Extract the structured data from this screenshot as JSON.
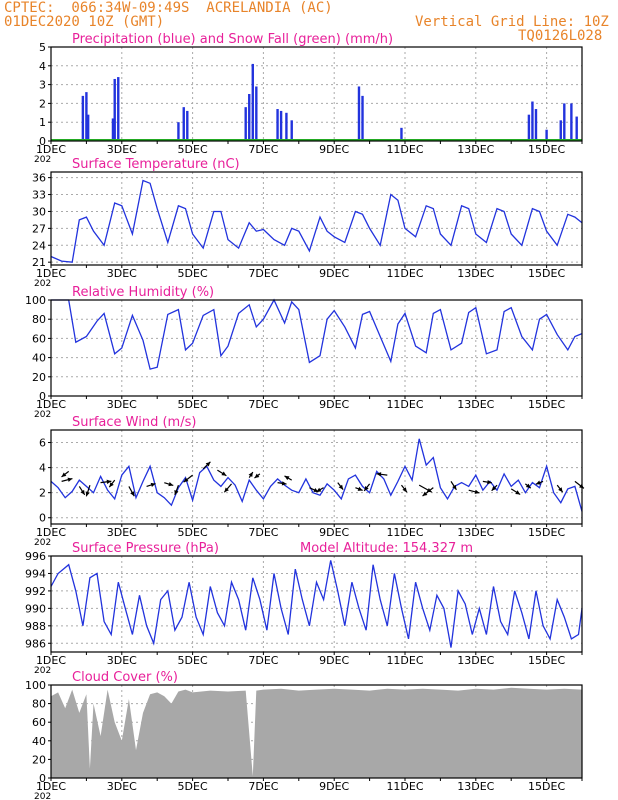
{
  "header": {
    "line1": "CPTEC:  066:34W-09:49S  ACRELANDIA (AC)",
    "line2": "01DEC2020 10Z (GMT)",
    "grid_note": "Vertical Grid Line: 10Z",
    "code": "TQ0126L028"
  },
  "colors": {
    "header": "#e8842a",
    "title": "#e8209a",
    "line": "#2233dd",
    "snow": "#22aa22",
    "cloud": "#a8a8a8",
    "grid": "#aaaaaa"
  },
  "x_axis": {
    "tick_labels": [
      "1DEC",
      "3DEC",
      "5DEC",
      "7DEC",
      "9DEC",
      "11DEC",
      "13DEC",
      "15DEC"
    ],
    "truncated_label": "202"
  },
  "chart_data": [
    {
      "id": "precip",
      "type": "bar",
      "title": "Precipitation (blue) and Snow Fall (green) (mm/h)",
      "ylim": [
        0,
        5
      ],
      "yticks": [
        0,
        1,
        2,
        3,
        4,
        5
      ],
      "grid": true,
      "series": [
        {
          "name": "Precipitation",
          "color": "#2233dd",
          "points": [
            [
              1.9,
              2.4
            ],
            [
              2.0,
              2.6
            ],
            [
              2.05,
              1.4
            ],
            [
              2.8,
              3.3
            ],
            [
              2.9,
              3.4
            ],
            [
              2.75,
              1.2
            ],
            [
              4.6,
              1.0
            ],
            [
              4.75,
              1.8
            ],
            [
              4.85,
              1.6
            ],
            [
              6.5,
              1.8
            ],
            [
              6.6,
              2.5
            ],
            [
              6.7,
              4.1
            ],
            [
              6.8,
              2.9
            ],
            [
              7.4,
              1.7
            ],
            [
              7.5,
              1.6
            ],
            [
              7.65,
              1.5
            ],
            [
              7.8,
              1.1
            ],
            [
              9.7,
              2.9
            ],
            [
              9.8,
              2.4
            ],
            [
              10.9,
              0.7
            ],
            [
              14.5,
              1.4
            ],
            [
              14.6,
              2.1
            ],
            [
              14.7,
              1.7
            ],
            [
              15.0,
              0.6
            ],
            [
              15.4,
              1.1
            ],
            [
              15.5,
              2.0
            ],
            [
              15.7,
              2.0
            ],
            [
              15.85,
              1.3
            ]
          ]
        },
        {
          "name": "Snow Fall",
          "color": "#22aa22",
          "points": [
            [
              1.0,
              0.1
            ],
            [
              15.9,
              0.1
            ]
          ]
        }
      ]
    },
    {
      "id": "temp",
      "type": "line",
      "title": "Surface Temperature (nC)",
      "ylim": [
        20.5,
        37
      ],
      "yticks": [
        21,
        24,
        27,
        30,
        33,
        36
      ],
      "grid": true,
      "x": [
        1.0,
        1.3,
        1.6,
        1.8,
        2.0,
        2.2,
        2.5,
        2.8,
        3.0,
        3.3,
        3.6,
        3.8,
        4.0,
        4.3,
        4.6,
        4.8,
        5.0,
        5.3,
        5.6,
        5.8,
        6.0,
        6.3,
        6.6,
        6.8,
        7.0,
        7.3,
        7.6,
        7.8,
        8.0,
        8.3,
        8.6,
        8.8,
        9.0,
        9.3,
        9.6,
        9.8,
        10.0,
        10.3,
        10.6,
        10.8,
        11.0,
        11.3,
        11.6,
        11.8,
        12.0,
        12.3,
        12.6,
        12.8,
        13.0,
        13.3,
        13.6,
        13.8,
        14.0,
        14.3,
        14.6,
        14.8,
        15.0,
        15.3,
        15.6,
        15.8,
        16.0
      ],
      "y": [
        22.0,
        21.2,
        21.0,
        28.5,
        29.0,
        26.5,
        24.0,
        31.5,
        31.0,
        26.0,
        35.5,
        35.0,
        30.5,
        24.5,
        31.0,
        30.5,
        26.0,
        23.5,
        30.0,
        30.0,
        25.0,
        23.5,
        28.0,
        26.5,
        26.8,
        25.0,
        24.0,
        27.0,
        26.5,
        23.0,
        29.0,
        26.5,
        25.5,
        24.5,
        30.0,
        29.5,
        27.0,
        24.0,
        33.0,
        32.0,
        27.0,
        25.5,
        31.0,
        30.5,
        26.0,
        24.0,
        31.0,
        30.5,
        26.0,
        24.5,
        30.5,
        30.0,
        26.0,
        24.0,
        30.5,
        30.0,
        26.5,
        24.0,
        29.5,
        29.0,
        28.0
      ]
    },
    {
      "id": "rh",
      "type": "line",
      "title": "Relative Humidity (%)",
      "ylim": [
        0,
        100
      ],
      "yticks": [
        0,
        20,
        40,
        60,
        80,
        100
      ],
      "grid": true,
      "x": [
        1.0,
        1.5,
        1.7,
        2.0,
        2.3,
        2.5,
        2.8,
        3.0,
        3.3,
        3.6,
        3.8,
        4.0,
        4.3,
        4.6,
        4.8,
        5.0,
        5.3,
        5.6,
        5.8,
        6.0,
        6.3,
        6.6,
        6.8,
        7.0,
        7.3,
        7.6,
        7.8,
        8.0,
        8.3,
        8.6,
        8.8,
        9.0,
        9.3,
        9.6,
        9.8,
        10.0,
        10.3,
        10.6,
        10.8,
        11.0,
        11.3,
        11.6,
        11.8,
        12.0,
        12.3,
        12.6,
        12.8,
        13.0,
        13.3,
        13.6,
        13.8,
        14.0,
        14.3,
        14.6,
        14.8,
        15.0,
        15.3,
        15.6,
        15.8,
        16.0
      ],
      "y": [
        100,
        100,
        56,
        62,
        78,
        86,
        44,
        50,
        84,
        58,
        28,
        30,
        85,
        90,
        48,
        55,
        84,
        90,
        42,
        52,
        86,
        95,
        72,
        80,
        100,
        76,
        98,
        90,
        35,
        42,
        80,
        89,
        72,
        50,
        85,
        88,
        62,
        36,
        75,
        86,
        52,
        45,
        86,
        90,
        48,
        55,
        87,
        92,
        44,
        48,
        88,
        92,
        62,
        48,
        80,
        85,
        64,
        48,
        62,
        65
      ]
    },
    {
      "id": "wind",
      "type": "line",
      "title": "Surface Wind (m/s)",
      "ylim": [
        -0.5,
        7
      ],
      "yticks": [
        0,
        2,
        4,
        6
      ],
      "grid": true,
      "x": [
        1.0,
        1.2,
        1.4,
        1.6,
        1.8,
        2.0,
        2.2,
        2.4,
        2.6,
        2.8,
        3.0,
        3.2,
        3.4,
        3.6,
        3.8,
        4.0,
        4.2,
        4.4,
        4.6,
        4.8,
        5.0,
        5.2,
        5.4,
        5.6,
        5.8,
        6.0,
        6.2,
        6.4,
        6.6,
        6.8,
        7.0,
        7.2,
        7.4,
        7.6,
        7.8,
        8.0,
        8.2,
        8.4,
        8.6,
        8.8,
        9.0,
        9.2,
        9.4,
        9.6,
        9.8,
        10.0,
        10.2,
        10.4,
        10.6,
        10.8,
        11.0,
        11.2,
        11.4,
        11.6,
        11.8,
        12.0,
        12.2,
        12.4,
        12.6,
        12.8,
        13.0,
        13.2,
        13.4,
        13.6,
        13.8,
        14.0,
        14.2,
        14.4,
        14.6,
        14.8,
        15.0,
        15.2,
        15.4,
        15.6,
        15.8,
        16.0
      ],
      "y": [
        2.9,
        2.4,
        1.6,
        2.1,
        3.0,
        2.5,
        2.0,
        3.3,
        2.2,
        1.5,
        3.4,
        4.1,
        1.6,
        2.9,
        4.1,
        2.0,
        1.6,
        1.0,
        2.4,
        3.2,
        1.4,
        3.6,
        4.1,
        3.0,
        2.5,
        3.2,
        2.6,
        1.3,
        3.0,
        2.2,
        1.5,
        2.5,
        3.1,
        2.6,
        2.2,
        2.0,
        3.1,
        2.0,
        1.8,
        2.7,
        2.2,
        1.5,
        3.1,
        3.4,
        2.5,
        2.0,
        3.7,
        3.1,
        1.8,
        2.9,
        4.1,
        3.0,
        6.3,
        4.2,
        4.8,
        2.4,
        1.5,
        2.5,
        2.8,
        2.5,
        3.4,
        2.2,
        2.9,
        2.2,
        3.5,
        2.5,
        3.0,
        2.0,
        2.8,
        2.4,
        4.1,
        2.0,
        1.2,
        2.3,
        2.5,
        0.5
      ],
      "arrows": [
        [
          1.3,
          2.9,
          0.6,
          -0.2
        ],
        [
          1.5,
          3.7,
          -0.4,
          0.4
        ],
        [
          1.8,
          2.5,
          0.3,
          0.6
        ],
        [
          2.1,
          2.6,
          -0.2,
          0.8
        ],
        [
          2.4,
          2.8,
          0.6,
          -0.1
        ],
        [
          2.8,
          3.0,
          -0.3,
          0.5
        ],
        [
          3.2,
          2.5,
          0.3,
          0.7
        ],
        [
          3.7,
          2.5,
          0.5,
          -0.2
        ],
        [
          4.2,
          2.8,
          0.5,
          0.2
        ],
        [
          4.6,
          2.6,
          -0.2,
          0.7
        ],
        [
          5.0,
          3.4,
          -0.5,
          0.5
        ],
        [
          5.3,
          3.9,
          0.4,
          -0.5
        ],
        [
          5.7,
          3.8,
          0.5,
          0.4
        ],
        [
          6.1,
          2.7,
          -0.4,
          0.6
        ],
        [
          6.6,
          3.2,
          0.2,
          -0.4
        ],
        [
          6.9,
          3.5,
          -0.3,
          0.3
        ],
        [
          7.4,
          2.8,
          0.5,
          0.1
        ],
        [
          7.8,
          3.0,
          -0.4,
          -0.3
        ],
        [
          8.3,
          2.4,
          0.5,
          0.3
        ],
        [
          8.7,
          2.4,
          -0.4,
          0.3
        ],
        [
          9.1,
          2.8,
          0.3,
          0.5
        ],
        [
          9.6,
          2.4,
          0.4,
          0.2
        ],
        [
          10.0,
          2.7,
          -0.3,
          0.5
        ],
        [
          10.5,
          3.4,
          -0.6,
          -0.1
        ],
        [
          10.9,
          2.6,
          0.3,
          0.5
        ],
        [
          11.4,
          2.6,
          0.7,
          0.5
        ],
        [
          11.8,
          2.4,
          -0.6,
          0.6
        ],
        [
          12.3,
          2.9,
          0.3,
          0.6
        ],
        [
          12.8,
          2.2,
          0.6,
          0.2
        ],
        [
          13.2,
          2.9,
          0.5,
          0.1
        ],
        [
          13.6,
          2.6,
          -0.3,
          0.4
        ],
        [
          14.0,
          2.3,
          0.5,
          0.4
        ],
        [
          14.4,
          2.7,
          0.3,
          0.3
        ],
        [
          14.9,
          2.9,
          -0.4,
          0.2
        ],
        [
          15.3,
          2.6,
          0.3,
          0.5
        ],
        [
          15.8,
          2.9,
          0.5,
          0.5
        ]
      ]
    },
    {
      "id": "pressure",
      "type": "line",
      "title": "Surface Pressure (hPa)",
      "subtitle": "Model Altitude: 154.327 m",
      "ylim": [
        985,
        996
      ],
      "yticks": [
        986,
        988,
        990,
        992,
        994,
        996
      ],
      "grid": true,
      "x": [
        1.0,
        1.2,
        1.5,
        1.7,
        1.9,
        2.1,
        2.3,
        2.5,
        2.7,
        2.9,
        3.1,
        3.3,
        3.5,
        3.7,
        3.9,
        4.1,
        4.3,
        4.5,
        4.7,
        4.9,
        5.1,
        5.3,
        5.5,
        5.7,
        5.9,
        6.1,
        6.3,
        6.5,
        6.7,
        6.9,
        7.1,
        7.3,
        7.5,
        7.7,
        7.9,
        8.1,
        8.3,
        8.5,
        8.7,
        8.9,
        9.1,
        9.3,
        9.5,
        9.7,
        9.9,
        10.1,
        10.3,
        10.5,
        10.7,
        10.9,
        11.1,
        11.3,
        11.5,
        11.7,
        11.9,
        12.1,
        12.3,
        12.5,
        12.7,
        12.9,
        13.1,
        13.3,
        13.5,
        13.7,
        13.9,
        14.1,
        14.3,
        14.5,
        14.7,
        14.9,
        15.1,
        15.3,
        15.5,
        15.7,
        15.9,
        16.0
      ],
      "y": [
        992.5,
        994.0,
        995.0,
        992.0,
        988.0,
        993.5,
        994.0,
        988.5,
        987.0,
        993.0,
        990.0,
        987.0,
        991.5,
        988.0,
        986.0,
        991.0,
        992.0,
        987.5,
        989.0,
        993.0,
        989.0,
        987.0,
        992.5,
        989.5,
        988.0,
        993.0,
        991.0,
        987.5,
        993.5,
        991.0,
        987.5,
        994.0,
        990.0,
        987.0,
        994.5,
        991.0,
        988.0,
        993.0,
        991.0,
        995.5,
        992.0,
        988.0,
        993.0,
        990.0,
        987.5,
        995.0,
        991.0,
        988.0,
        994.0,
        990.0,
        986.5,
        993.0,
        990.0,
        987.5,
        991.5,
        990.0,
        985.5,
        992.0,
        990.5,
        987.0,
        990.0,
        987.0,
        992.5,
        988.5,
        987.0,
        992.0,
        989.5,
        986.5,
        992.0,
        988.0,
        986.5,
        991.0,
        989.0,
        986.5,
        987.0,
        990.0
      ]
    },
    {
      "id": "cloud",
      "type": "area",
      "title": "Cloud Cover (%)",
      "ylim": [
        0,
        100
      ],
      "yticks": [
        0,
        20,
        40,
        60,
        80,
        100
      ],
      "grid": true,
      "x": [
        1.0,
        1.2,
        1.4,
        1.6,
        1.8,
        2.0,
        2.1,
        2.2,
        2.4,
        2.6,
        2.8,
        3.0,
        3.2,
        3.4,
        3.6,
        3.8,
        4.0,
        4.2,
        4.4,
        4.6,
        4.8,
        5.0,
        5.5,
        6.0,
        6.5,
        6.7,
        6.8,
        7.0,
        7.5,
        8.0,
        8.5,
        9.0,
        9.5,
        10.0,
        10.5,
        11.0,
        11.5,
        12.0,
        12.5,
        13.0,
        13.5,
        14.0,
        14.5,
        15.0,
        15.5,
        16.0
      ],
      "y": [
        88,
        92,
        75,
        95,
        70,
        90,
        10,
        80,
        45,
        95,
        60,
        40,
        85,
        30,
        70,
        90,
        92,
        88,
        80,
        93,
        95,
        92,
        94,
        93,
        94,
        2,
        94,
        95,
        96,
        94,
        95,
        96,
        95,
        94,
        96,
        95,
        96,
        95,
        94,
        96,
        95,
        97,
        96,
        95,
        96,
        95
      ]
    }
  ]
}
